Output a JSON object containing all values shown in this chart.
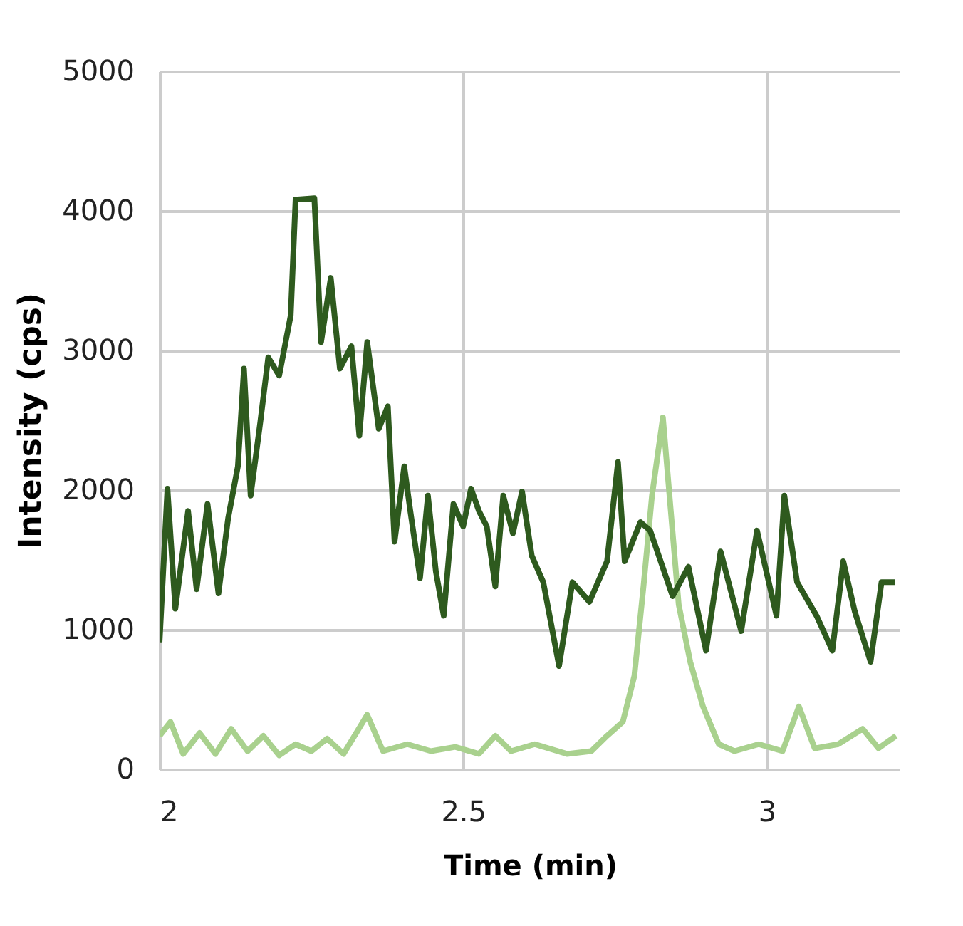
{
  "chart_data": {
    "type": "line",
    "xlabel": "Time (min)",
    "ylabel": "Intensity (cps)",
    "xlim": [
      2,
      3.22
    ],
    "xticks": [
      2,
      2.5,
      3
    ],
    "ylim": [
      0,
      5000
    ],
    "yticks": [
      0,
      1000,
      2000,
      3000,
      4000,
      5000
    ],
    "grid": true,
    "legend": false,
    "marker": "none",
    "line_style": "solid",
    "series": [
      {
        "color": "#a9d18e",
        "x": [
          2.0,
          2.018,
          2.039,
          2.066,
          2.092,
          2.118,
          2.145,
          2.171,
          2.197,
          2.224,
          2.25,
          2.276,
          2.303,
          2.342,
          2.368,
          2.408,
          2.447,
          2.487,
          2.526,
          2.553,
          2.579,
          2.618,
          2.671,
          2.711,
          2.737,
          2.763,
          2.782,
          2.797,
          2.811,
          2.829,
          2.842,
          2.855,
          2.874,
          2.895,
          2.921,
          2.947,
          2.987,
          3.026,
          3.053,
          3.079,
          3.118,
          3.158,
          3.184,
          3.213
        ],
        "values": [
          240,
          340,
          110,
          260,
          110,
          290,
          130,
          240,
          100,
          180,
          130,
          220,
          110,
          390,
          130,
          180,
          130,
          160,
          110,
          240,
          130,
          180,
          110,
          130,
          240,
          340,
          670,
          1310,
          1960,
          2520,
          1850,
          1180,
          770,
          450,
          180,
          130,
          180,
          130,
          450,
          150,
          180,
          290,
          150,
          240
        ]
      },
      {
        "color": "#2e5a1e",
        "x": [
          2.0,
          2.013,
          2.026,
          2.047,
          2.061,
          2.079,
          2.097,
          2.113,
          2.129,
          2.139,
          2.15,
          2.166,
          2.179,
          2.197,
          2.216,
          2.224,
          2.255,
          2.266,
          2.282,
          2.297,
          2.316,
          2.329,
          2.342,
          2.361,
          2.376,
          2.387,
          2.403,
          2.413,
          2.429,
          2.442,
          2.455,
          2.468,
          2.484,
          2.5,
          2.513,
          2.526,
          2.539,
          2.553,
          2.566,
          2.582,
          2.597,
          2.613,
          2.632,
          2.658,
          2.68,
          2.708,
          2.737,
          2.755,
          2.766,
          2.792,
          2.808,
          2.845,
          2.871,
          2.9,
          2.924,
          2.958,
          2.984,
          3.016,
          3.029,
          3.05,
          3.082,
          3.108,
          3.126,
          3.145,
          3.171,
          3.189,
          3.211
        ],
        "values": [
          910,
          2010,
          1150,
          1850,
          1290,
          1900,
          1260,
          1800,
          2170,
          2870,
          1960,
          2490,
          2950,
          2820,
          3250,
          4080,
          4090,
          3060,
          3520,
          2870,
          3030,
          2390,
          3060,
          2440,
          2600,
          1630,
          2170,
          1850,
          1370,
          1960,
          1420,
          1100,
          1900,
          1740,
          2010,
          1850,
          1740,
          1310,
          1960,
          1690,
          1990,
          1530,
          1340,
          740,
          1340,
          1200,
          1490,
          2200,
          1490,
          1770,
          1710,
          1240,
          1450,
          850,
          1560,
          990,
          1710,
          1100,
          1960,
          1340,
          1100,
          850,
          1490,
          1130,
          770,
          1340,
          1340
        ]
      }
    ]
  }
}
